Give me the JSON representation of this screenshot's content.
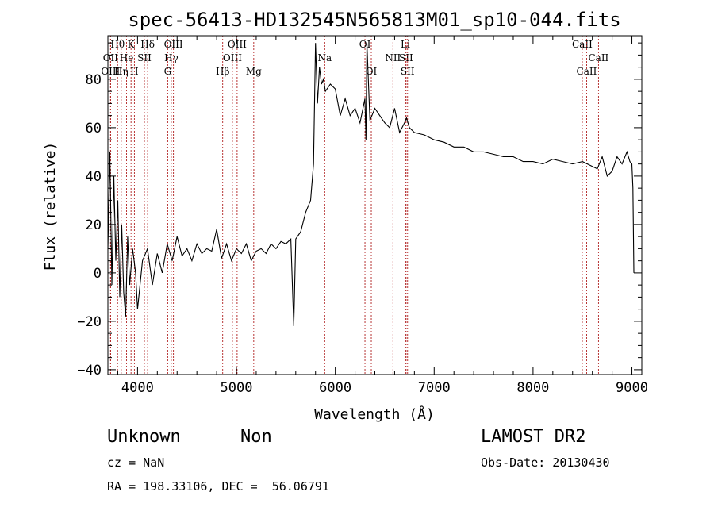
{
  "chart_data": {
    "type": "line",
    "title": "spec-56413-HD132545N565813M01_sp10-044.fits",
    "xlabel": "Wavelength (Å)",
    "ylabel": "Flux (relative)",
    "xlim": [
      3700,
      9100
    ],
    "ylim": [
      -42,
      98
    ],
    "x_ticks": [
      4000,
      5000,
      6000,
      7000,
      8000,
      9000
    ],
    "y_ticks": [
      -40,
      -20,
      0,
      20,
      40,
      60,
      80
    ],
    "grid": false,
    "series": [
      {
        "x": [
          3700,
          3720,
          3740,
          3760,
          3780,
          3800,
          3820,
          3840,
          3860,
          3880,
          3900,
          3920,
          3950,
          3980,
          4000,
          4050,
          4100,
          4150,
          4200,
          4250,
          4300,
          4350,
          4400,
          4450,
          4500,
          4550,
          4600,
          4650,
          4700,
          4750,
          4800,
          4850,
          4900,
          4950,
          5000,
          5050,
          5100,
          5150,
          5200,
          5250,
          5300,
          5350,
          5400,
          5450,
          5500,
          5550,
          5580,
          5600,
          5650,
          5700,
          5750,
          5780,
          5800,
          5820,
          5840,
          5860,
          5880,
          5900,
          5950,
          6000,
          6050,
          6100,
          6150,
          6200,
          6250,
          6300,
          6310,
          6320,
          6350,
          6400,
          6450,
          6500,
          6550,
          6600,
          6650,
          6700,
          6720,
          6750,
          6800,
          6900,
          7000,
          7100,
          7200,
          7300,
          7400,
          7500,
          7600,
          7700,
          7800,
          7900,
          8000,
          8100,
          8200,
          8300,
          8400,
          8500,
          8600,
          8650,
          8700,
          8750,
          8800,
          8850,
          8900,
          8950,
          8980,
          9000,
          9010,
          9020
        ],
        "y": [
          10,
          50,
          -5,
          40,
          5,
          30,
          -10,
          20,
          -8,
          -18,
          15,
          -5,
          10,
          0,
          -15,
          5,
          10,
          -5,
          8,
          0,
          12,
          5,
          15,
          7,
          10,
          5,
          12,
          8,
          10,
          9,
          18,
          6,
          12,
          5,
          10,
          8,
          12,
          5,
          9,
          10,
          8,
          12,
          10,
          13,
          12,
          14,
          -22,
          14,
          17,
          25,
          30,
          45,
          95,
          70,
          85,
          78,
          80,
          75,
          78,
          76,
          65,
          72,
          65,
          68,
          62,
          72,
          55,
          95,
          63,
          68,
          65,
          62,
          60,
          68,
          58,
          62,
          64,
          60,
          58,
          57,
          55,
          54,
          52,
          52,
          50,
          50,
          49,
          48,
          48,
          46,
          46,
          45,
          47,
          46,
          45,
          46,
          44,
          43,
          48,
          40,
          42,
          48,
          45,
          50,
          46,
          45,
          35,
          0
        ]
      }
    ],
    "line_markers": [
      {
        "name": "Hθ",
        "x": 3798,
        "row": 1
      },
      {
        "name": "OII",
        "x": 3727,
        "row": 2
      },
      {
        "name": "OIII",
        "x": 3727,
        "row": 3
      },
      {
        "name": "He",
        "x": 3889,
        "row": 2
      },
      {
        "name": "Hη",
        "x": 3835,
        "row": 3
      },
      {
        "name": "K",
        "x": 3934,
        "row": 1
      },
      {
        "name": "H",
        "x": 3968,
        "row": 3
      },
      {
        "name": "SII",
        "x": 4069,
        "row": 2
      },
      {
        "name": "Hδ",
        "x": 4102,
        "row": 1
      },
      {
        "name": "OIII",
        "x": 4363,
        "row": 1
      },
      {
        "name": "Hγ",
        "x": 4341,
        "row": 2
      },
      {
        "name": "G",
        "x": 4305,
        "row": 3
      },
      {
        "name": "Hβ",
        "x": 4861,
        "row": 3
      },
      {
        "name": "OIII",
        "x": 5007,
        "row": 1
      },
      {
        "name": "OIII",
        "x": 4959,
        "row": 2
      },
      {
        "name": "Mg",
        "x": 5175,
        "row": 3
      },
      {
        "name": "Na",
        "x": 5893,
        "row": 2
      },
      {
        "name": "OI",
        "x": 6300,
        "row": 1
      },
      {
        "name": "OI",
        "x": 6364,
        "row": 3
      },
      {
        "name": "NII",
        "x": 6583,
        "row": 2
      },
      {
        "name": "Li",
        "x": 6708,
        "row": 1
      },
      {
        "name": "SII",
        "x": 6716,
        "row": 2
      },
      {
        "name": "SII",
        "x": 6731,
        "row": 3
      },
      {
        "name": "CaII",
        "x": 8498,
        "row": 1
      },
      {
        "name": "CaII",
        "x": 8542,
        "row": 3
      },
      {
        "name": "CaII",
        "x": 8662,
        "row": 2
      }
    ]
  },
  "info": {
    "class": "Unknown",
    "subclass": "Non",
    "survey": "LAMOST DR2",
    "cz": "cz = NaN",
    "obs_date": "Obs-Date: 20130430",
    "coords": "RA = 198.33106, DEC =  56.06791"
  }
}
